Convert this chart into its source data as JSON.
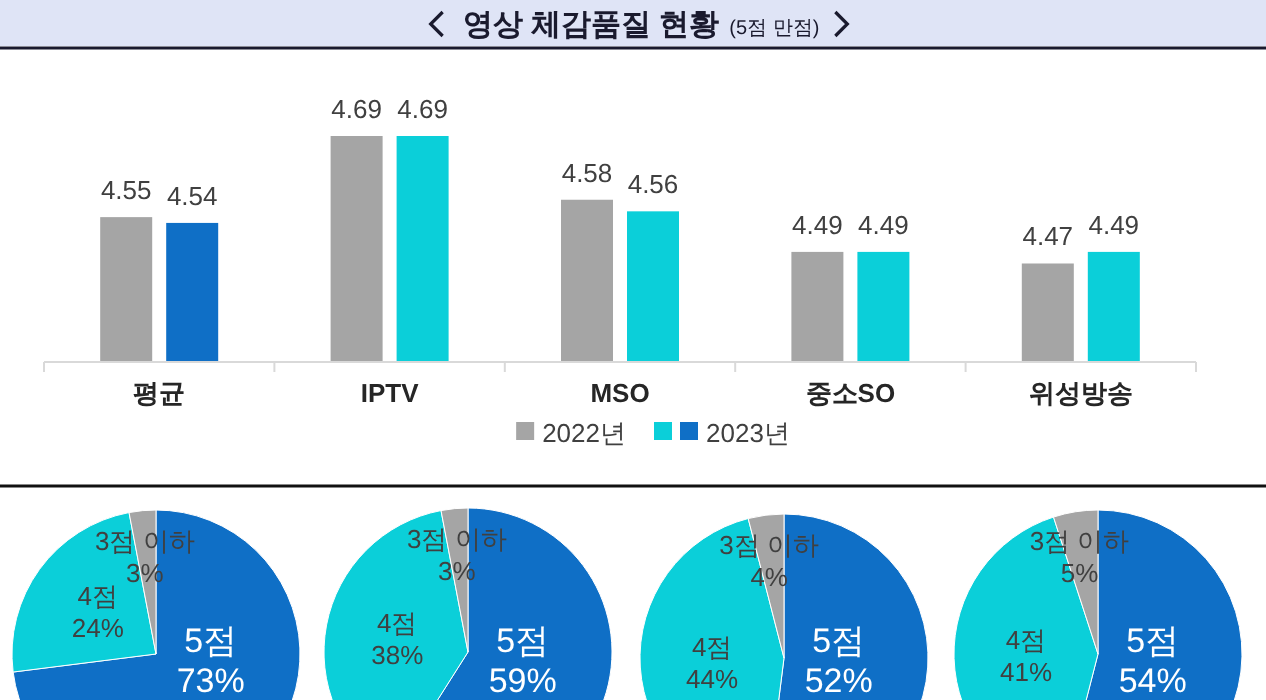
{
  "chart_data": [
    {
      "type": "bar",
      "title": "영상 체감품질 현황",
      "subtitle": "(5점 만점)",
      "categories": [
        "평균",
        "IPTV",
        "MSO",
        "중소SO",
        "위성방송"
      ],
      "ylim": [
        4.3,
        4.69
      ],
      "data_labels": true,
      "legend": "bottom",
      "series": [
        {
          "name": "2022년",
          "color": "#a5a5a5",
          "values": [
            4.55,
            4.69,
            4.58,
            4.49,
            4.47
          ]
        },
        {
          "name": "2023년",
          "color": "#0bcfd9",
          "colors": [
            "#0f6fc6",
            "#0bcfd9",
            "#0bcfd9",
            "#0bcfd9",
            "#0bcfd9"
          ],
          "values": [
            4.54,
            4.69,
            4.56,
            4.49,
            4.49
          ]
        }
      ]
    },
    {
      "type": "pie",
      "categories": [
        "5점",
        "4점",
        "3점 이하"
      ],
      "values": [
        73,
        24,
        3
      ],
      "value_labels": [
        "73%",
        "24%",
        "3%"
      ],
      "colors": [
        "#0f6fc6",
        "#0bcfd9",
        "#a5a5a5"
      ]
    },
    {
      "type": "pie",
      "categories": [
        "5점",
        "4점",
        "3점 이하"
      ],
      "values": [
        59,
        38,
        3
      ],
      "value_labels": [
        "59%",
        "38%",
        "3%"
      ],
      "colors": [
        "#0f6fc6",
        "#0bcfd9",
        "#a5a5a5"
      ]
    },
    {
      "type": "pie",
      "categories": [
        "5점",
        "4점",
        "3점 이하"
      ],
      "values": [
        52,
        44,
        4
      ],
      "value_labels": [
        "52%",
        "44%",
        "4%"
      ],
      "colors": [
        "#0f6fc6",
        "#0bcfd9",
        "#a5a5a5"
      ]
    },
    {
      "type": "pie",
      "categories": [
        "5점",
        "4점",
        "3점 이하"
      ],
      "values": [
        54,
        41,
        5
      ],
      "value_labels": [
        "54%",
        "41%",
        "5%"
      ],
      "colors": [
        "#0f6fc6",
        "#0bcfd9",
        "#a5a5a5"
      ]
    }
  ]
}
